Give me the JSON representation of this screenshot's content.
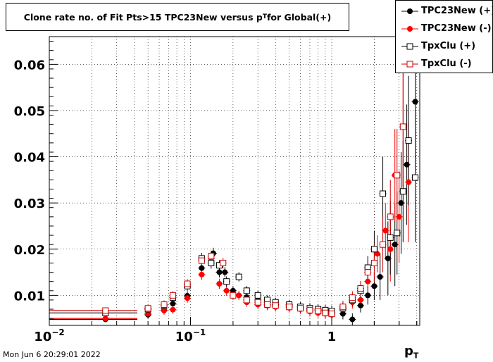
{
  "title": {
    "main": "Clone rate no. of Fit Pts>15 TPC23New versus p",
    "sub": "T",
    "tail": " for Global(+)"
  },
  "footer": "Mon Jun  6 20:29:01 2022",
  "xlabel": {
    "main": "p",
    "sub": "T"
  },
  "legend": [
    {
      "label": "TPC23New (+)",
      "color": "#000000",
      "marker": "filled-circle"
    },
    {
      "label": "TPC23New (-)",
      "color": "#ff0000",
      "marker": "filled-circle"
    },
    {
      "label": "TpxClu (+)",
      "color": "#000000",
      "marker": "open-square"
    },
    {
      "label": "TpxClu (-)",
      "color": "#cc0000",
      "marker": "open-square"
    }
  ],
  "chart_data": {
    "type": "scatter",
    "x_scale": "log",
    "xlim": [
      0.01,
      4.2
    ],
    "ylim": [
      0.0035,
      0.066
    ],
    "grid": true,
    "x_ticks": [
      {
        "value": 0.01,
        "base": "10",
        "exp": "−2"
      },
      {
        "value": 0.1,
        "base": "10",
        "exp": "−1"
      },
      {
        "value": 1,
        "base": "1",
        "exp": ""
      }
    ],
    "y_ticks": [
      0.01,
      0.02,
      0.03,
      0.04,
      0.05,
      0.06
    ],
    "y_tick_labels": [
      "0.01",
      "0.02",
      "0.03",
      "0.04",
      "0.05",
      "0.06"
    ],
    "series": [
      {
        "name": "TPC23New (+)",
        "color": "#000000",
        "marker": "filled-circle",
        "points": [
          {
            "x": 0.025,
            "y": 0.0048,
            "xerr": [
              0.01,
              0.042
            ],
            "yerr": 0.0006
          },
          {
            "x": 0.05,
            "y": 0.0058,
            "yerr": 0.0008
          },
          {
            "x": 0.065,
            "y": 0.0068,
            "yerr": 0.0009
          },
          {
            "x": 0.075,
            "y": 0.0082,
            "yerr": 0.0009
          },
          {
            "x": 0.095,
            "y": 0.0099,
            "yerr": 0.001
          },
          {
            "x": 0.12,
            "y": 0.0159,
            "yerr": 0.0012
          },
          {
            "x": 0.145,
            "y": 0.0191,
            "yerr": 0.0012
          },
          {
            "x": 0.16,
            "y": 0.015,
            "yerr": 0.0011
          },
          {
            "x": 0.175,
            "y": 0.015,
            "yerr": 0.0011
          },
          {
            "x": 0.2,
            "y": 0.011,
            "yerr": 0.001
          },
          {
            "x": 0.25,
            "y": 0.0096,
            "yerr": 0.001
          },
          {
            "x": 0.3,
            "y": 0.009,
            "yerr": 0.001
          },
          {
            "x": 0.35,
            "y": 0.0085,
            "yerr": 0.001
          },
          {
            "x": 0.4,
            "y": 0.008,
            "yerr": 0.001
          },
          {
            "x": 0.5,
            "y": 0.0078,
            "yerr": 0.001
          },
          {
            "x": 0.6,
            "y": 0.0075,
            "yerr": 0.001
          },
          {
            "x": 0.7,
            "y": 0.007,
            "yerr": 0.0011
          },
          {
            "x": 0.8,
            "y": 0.0068,
            "yerr": 0.0011
          },
          {
            "x": 0.9,
            "y": 0.0065,
            "yerr": 0.0011
          },
          {
            "x": 1.0,
            "y": 0.0063,
            "yerr": 0.0012
          },
          {
            "x": 1.2,
            "y": 0.006,
            "yerr": 0.0012
          },
          {
            "x": 1.4,
            "y": 0.0048,
            "yerr": 0.0013
          },
          {
            "x": 1.6,
            "y": 0.0078,
            "yerr": 0.0015
          },
          {
            "x": 1.8,
            "y": 0.01,
            "yerr": 0.002
          },
          {
            "x": 2.0,
            "y": 0.012,
            "yerr": 0.003
          },
          {
            "x": 2.2,
            "y": 0.014,
            "yerr": 0.005
          },
          {
            "x": 2.5,
            "y": 0.018,
            "yerr": 0.008
          },
          {
            "x": 2.8,
            "y": 0.021,
            "yerr": 0.009
          },
          {
            "x": 3.1,
            "y": 0.03,
            "yerr": 0.011
          },
          {
            "x": 3.4,
            "y": 0.0383,
            "yerr": 0.013
          },
          {
            "x": 3.9,
            "y": 0.0519,
            "yerr": 0.015
          }
        ]
      },
      {
        "name": "TPC23New (-)",
        "color": "#ff0000",
        "marker": "filled-circle",
        "points": [
          {
            "x": 0.025,
            "y": 0.005,
            "xerr": [
              0.01,
              0.042
            ],
            "yerr": 0.0006
          },
          {
            "x": 0.05,
            "y": 0.006,
            "yerr": 0.0008
          },
          {
            "x": 0.065,
            "y": 0.0067,
            "yerr": 0.0009
          },
          {
            "x": 0.075,
            "y": 0.0069,
            "yerr": 0.0009
          },
          {
            "x": 0.095,
            "y": 0.0094,
            "yerr": 0.001
          },
          {
            "x": 0.12,
            "y": 0.0145,
            "yerr": 0.0012
          },
          {
            "x": 0.14,
            "y": 0.018,
            "yerr": 0.0012
          },
          {
            "x": 0.16,
            "y": 0.0125,
            "yerr": 0.0011
          },
          {
            "x": 0.18,
            "y": 0.011,
            "yerr": 0.0011
          },
          {
            "x": 0.22,
            "y": 0.01,
            "yerr": 0.001
          },
          {
            "x": 0.25,
            "y": 0.0085,
            "yerr": 0.001
          },
          {
            "x": 0.3,
            "y": 0.008,
            "yerr": 0.001
          },
          {
            "x": 0.35,
            "y": 0.0078,
            "yerr": 0.001
          },
          {
            "x": 0.4,
            "y": 0.0075,
            "yerr": 0.001
          },
          {
            "x": 0.5,
            "y": 0.0073,
            "yerr": 0.001
          },
          {
            "x": 0.6,
            "y": 0.007,
            "yerr": 0.001
          },
          {
            "x": 0.7,
            "y": 0.0065,
            "yerr": 0.0011
          },
          {
            "x": 0.8,
            "y": 0.0062,
            "yerr": 0.0011
          },
          {
            "x": 0.9,
            "y": 0.006,
            "yerr": 0.0011
          },
          {
            "x": 1.0,
            "y": 0.0058,
            "yerr": 0.0012
          },
          {
            "x": 1.2,
            "y": 0.007,
            "yerr": 0.0013
          },
          {
            "x": 1.4,
            "y": 0.0085,
            "yerr": 0.0014
          },
          {
            "x": 1.6,
            "y": 0.009,
            "yerr": 0.0016
          },
          {
            "x": 1.8,
            "y": 0.013,
            "yerr": 0.0025
          },
          {
            "x": 2.1,
            "y": 0.019,
            "yerr": 0.004
          },
          {
            "x": 2.4,
            "y": 0.024,
            "yerr": 0.006
          },
          {
            "x": 2.6,
            "y": 0.02,
            "yerr": 0.007
          },
          {
            "x": 2.8,
            "y": 0.036,
            "yerr": 0.01
          },
          {
            "x": 3.0,
            "y": 0.027,
            "yerr": 0.01
          },
          {
            "x": 3.2,
            "y": 0.0465,
            "yerr": 0.013
          },
          {
            "x": 3.5,
            "y": 0.0345,
            "yerr": 0.013
          }
        ]
      },
      {
        "name": "TpxClu (+)",
        "color": "#000000",
        "marker": "open-square",
        "points": [
          {
            "x": 0.025,
            "y": 0.0062,
            "xerr": [
              0.01,
              0.042
            ],
            "yerr": 0.0006
          },
          {
            "x": 0.05,
            "y": 0.007,
            "yerr": 0.0008
          },
          {
            "x": 0.065,
            "y": 0.0078,
            "yerr": 0.0009
          },
          {
            "x": 0.075,
            "y": 0.0095,
            "yerr": 0.0009
          },
          {
            "x": 0.095,
            "y": 0.012,
            "yerr": 0.001
          },
          {
            "x": 0.12,
            "y": 0.018,
            "yerr": 0.0012
          },
          {
            "x": 0.14,
            "y": 0.017,
            "yerr": 0.0012
          },
          {
            "x": 0.16,
            "y": 0.0165,
            "yerr": 0.0011
          },
          {
            "x": 0.18,
            "y": 0.013,
            "yerr": 0.0011
          },
          {
            "x": 0.22,
            "y": 0.014,
            "yerr": 0.001
          },
          {
            "x": 0.25,
            "y": 0.011,
            "yerr": 0.001
          },
          {
            "x": 0.3,
            "y": 0.01,
            "yerr": 0.001
          },
          {
            "x": 0.35,
            "y": 0.009,
            "yerr": 0.001
          },
          {
            "x": 0.4,
            "y": 0.0085,
            "yerr": 0.001
          },
          {
            "x": 0.5,
            "y": 0.008,
            "yerr": 0.001
          },
          {
            "x": 0.6,
            "y": 0.0075,
            "yerr": 0.001
          },
          {
            "x": 0.7,
            "y": 0.0072,
            "yerr": 0.0011
          },
          {
            "x": 0.8,
            "y": 0.007,
            "yerr": 0.0011
          },
          {
            "x": 0.9,
            "y": 0.0068,
            "yerr": 0.0011
          },
          {
            "x": 1.0,
            "y": 0.0066,
            "yerr": 0.0012
          },
          {
            "x": 1.2,
            "y": 0.0072,
            "yerr": 0.0013
          },
          {
            "x": 1.4,
            "y": 0.009,
            "yerr": 0.0014
          },
          {
            "x": 1.6,
            "y": 0.011,
            "yerr": 0.0016
          },
          {
            "x": 1.8,
            "y": 0.016,
            "yerr": 0.0025
          },
          {
            "x": 2.0,
            "y": 0.02,
            "yerr": 0.004
          },
          {
            "x": 2.3,
            "y": 0.032,
            "yerr": 0.008
          },
          {
            "x": 2.6,
            "y": 0.0225,
            "yerr": 0.008
          },
          {
            "x": 2.9,
            "y": 0.0235,
            "yerr": 0.009
          },
          {
            "x": 3.2,
            "y": 0.0325,
            "yerr": 0.011
          },
          {
            "x": 3.5,
            "y": 0.0435,
            "yerr": 0.014
          },
          {
            "x": 3.9,
            "y": 0.0355,
            "yerr": 0.014
          }
        ]
      },
      {
        "name": "TpxClu (-)",
        "color": "#cc0000",
        "marker": "open-square",
        "points": [
          {
            "x": 0.025,
            "y": 0.0067,
            "xerr": [
              0.01,
              0.042
            ],
            "yerr": 0.0006
          },
          {
            "x": 0.05,
            "y": 0.0072,
            "yerr": 0.0008
          },
          {
            "x": 0.065,
            "y": 0.008,
            "yerr": 0.0009
          },
          {
            "x": 0.075,
            "y": 0.01,
            "yerr": 0.0009
          },
          {
            "x": 0.095,
            "y": 0.0125,
            "yerr": 0.001
          },
          {
            "x": 0.12,
            "y": 0.0175,
            "yerr": 0.0012
          },
          {
            "x": 0.14,
            "y": 0.0185,
            "yerr": 0.0012
          },
          {
            "x": 0.17,
            "y": 0.017,
            "yerr": 0.0011
          },
          {
            "x": 0.2,
            "y": 0.01,
            "yerr": 0.001
          },
          {
            "x": 0.25,
            "y": 0.009,
            "yerr": 0.001
          },
          {
            "x": 0.3,
            "y": 0.0085,
            "yerr": 0.001
          },
          {
            "x": 0.35,
            "y": 0.008,
            "yerr": 0.001
          },
          {
            "x": 0.4,
            "y": 0.0078,
            "yerr": 0.001
          },
          {
            "x": 0.5,
            "y": 0.0075,
            "yerr": 0.001
          },
          {
            "x": 0.6,
            "y": 0.0072,
            "yerr": 0.001
          },
          {
            "x": 0.7,
            "y": 0.0068,
            "yerr": 0.0011
          },
          {
            "x": 0.8,
            "y": 0.0066,
            "yerr": 0.0011
          },
          {
            "x": 0.9,
            "y": 0.0062,
            "yerr": 0.0011
          },
          {
            "x": 1.0,
            "y": 0.006,
            "yerr": 0.0012
          },
          {
            "x": 1.2,
            "y": 0.0075,
            "yerr": 0.0013
          },
          {
            "x": 1.4,
            "y": 0.0095,
            "yerr": 0.0014
          },
          {
            "x": 1.6,
            "y": 0.0115,
            "yerr": 0.0016
          },
          {
            "x": 1.8,
            "y": 0.015,
            "yerr": 0.0025
          },
          {
            "x": 2.0,
            "y": 0.017,
            "yerr": 0.004
          },
          {
            "x": 2.3,
            "y": 0.021,
            "yerr": 0.006
          },
          {
            "x": 2.6,
            "y": 0.027,
            "yerr": 0.008
          },
          {
            "x": 2.9,
            "y": 0.036,
            "yerr": 0.01
          },
          {
            "x": 3.2,
            "y": 0.0465,
            "yerr": 0.013
          }
        ]
      }
    ]
  }
}
